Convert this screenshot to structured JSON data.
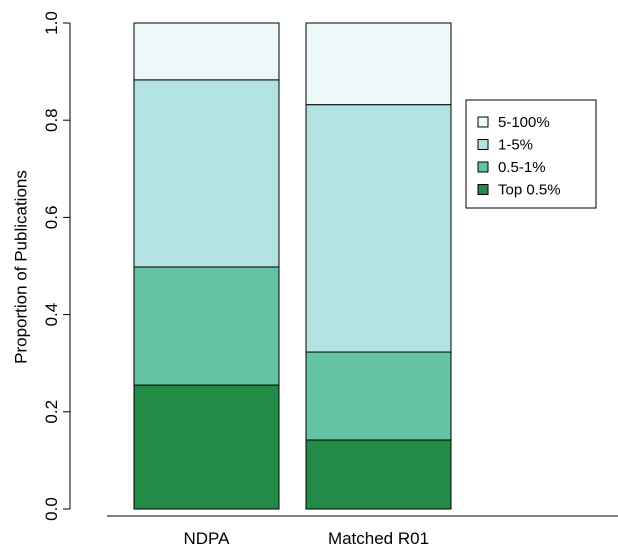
{
  "chart_data": {
    "type": "bar",
    "stacked": true,
    "categories": [
      "NDPA",
      "Matched R01"
    ],
    "series": [
      {
        "name": "Top 0.5%",
        "color": "#238b45",
        "values": [
          0.255,
          0.142
        ]
      },
      {
        "name": "0.5-1%",
        "color": "#66c2a4",
        "values": [
          0.243,
          0.181
        ]
      },
      {
        "name": "1-5%",
        "color": "#b2e2e2",
        "values": [
          0.385,
          0.509
        ]
      },
      {
        "name": "5-100%",
        "color": "#edf8fb",
        "values": [
          0.117,
          0.168
        ]
      }
    ],
    "legend_order": [
      "5-100%",
      "1-5%",
      "0.5-1%",
      "Top 0.5%"
    ],
    "legend_position": "right",
    "ylabel": "Proportion of Publications",
    "xlabel": "",
    "title": "",
    "ylim": [
      0,
      1
    ],
    "yticks": [
      0.0,
      0.2,
      0.4,
      0.6,
      0.8,
      1.0
    ],
    "ytick_labels": [
      "0.0",
      "0.2",
      "0.4",
      "0.6",
      "0.8",
      "1.0"
    ],
    "grid": false
  }
}
